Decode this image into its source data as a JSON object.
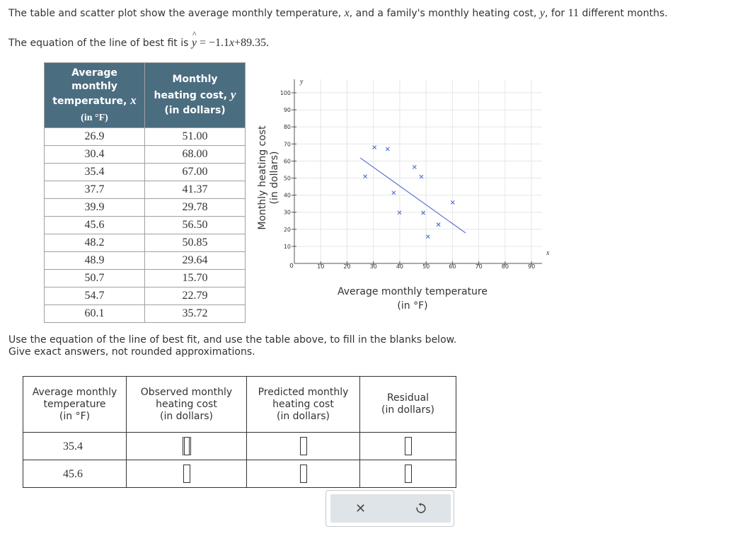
{
  "intro": {
    "before_x": "The table and scatter plot show the average monthly temperature, ",
    "var_x": "x",
    "between": ", and a family's monthly heating cost, ",
    "var_y": "y",
    "before_count": ", for ",
    "count": "11",
    "after_count": " different months."
  },
  "equation": {
    "prefix": "The equation of the line of best fit is ",
    "lhs_var": "y",
    "hat": "^",
    "rhs_first": " = −1.1",
    "rhs_var": "x",
    "rhs_rest": "+89.35."
  },
  "data_table": {
    "headers": {
      "col1_line1": "Average",
      "col1_line2": "monthly",
      "col1_line3": "temperature,",
      "col1_var": "x",
      "col1_unit": "(in °F)",
      "col2_line1": "Monthly",
      "col2_line2": "heating cost,",
      "col2_var": "y",
      "col2_unit": "(in dollars)"
    },
    "rows": [
      [
        "26.9",
        "51.00"
      ],
      [
        "30.4",
        "68.00"
      ],
      [
        "35.4",
        "67.00"
      ],
      [
        "37.7",
        "41.37"
      ],
      [
        "39.9",
        "29.78"
      ],
      [
        "45.6",
        "56.50"
      ],
      [
        "48.2",
        "50.85"
      ],
      [
        "48.9",
        "29.64"
      ],
      [
        "50.7",
        "15.70"
      ],
      [
        "54.7",
        "22.79"
      ],
      [
        "60.1",
        "35.72"
      ]
    ]
  },
  "chart": {
    "x_axis_var": "x",
    "y_axis_var": "y",
    "x_title_line1": "Average monthly temperature",
    "x_title_line2": "(in °F)",
    "y_title_line1": "Monthly heating cost",
    "y_title_line2": "(in dollars)",
    "origin_label": "0",
    "colors": {
      "points": "#4a6fd6",
      "line": "#5b6fd8",
      "grid": "#e6e6e6",
      "axis": "#555555"
    }
  },
  "chart_data": {
    "type": "scatter",
    "x": [
      26.9,
      30.4,
      35.4,
      37.7,
      39.9,
      45.6,
      48.2,
      48.9,
      50.7,
      54.7,
      60.1
    ],
    "y": [
      51.0,
      68.0,
      67.0,
      41.37,
      29.78,
      56.5,
      50.85,
      29.64,
      15.7,
      22.79,
      35.72
    ],
    "fit_line": {
      "slope": -1.1,
      "intercept": 89.35,
      "x_range": [
        25,
        65
      ]
    },
    "xlim": [
      0,
      90
    ],
    "ylim": [
      0,
      100
    ],
    "x_ticks": [
      10,
      20,
      30,
      40,
      50,
      60,
      70,
      80,
      90
    ],
    "y_ticks": [
      10,
      20,
      30,
      40,
      50,
      60,
      70,
      80,
      90,
      100
    ],
    "grid": true
  },
  "question": {
    "line1": "Use the equation of the line of best fit, and use the table above, to fill in the blanks below.",
    "line2": "Give exact answers, not rounded approximations."
  },
  "answer_table": {
    "headers": {
      "col1_line1": "Average monthly",
      "col1_line2": "temperature",
      "col1_line3": "(in °F)",
      "col2_line1": "Observed monthly",
      "col2_line2": "heating cost",
      "col2_line3": "(in dollars)",
      "col3_line1": "Predicted monthly",
      "col3_line2": "heating cost",
      "col3_line3": "(in dollars)",
      "col4_line1": "Residual",
      "col4_line2": "(in dollars)"
    },
    "rows": [
      {
        "temperature": "35.4",
        "observed": "",
        "predicted": "",
        "residual": ""
      },
      {
        "temperature": "45.6",
        "observed": "",
        "predicted": "",
        "residual": ""
      }
    ]
  },
  "buttons": {
    "clear_icon": "close-icon",
    "clear_glyph": "✕",
    "reset_icon": "undo-icon"
  }
}
